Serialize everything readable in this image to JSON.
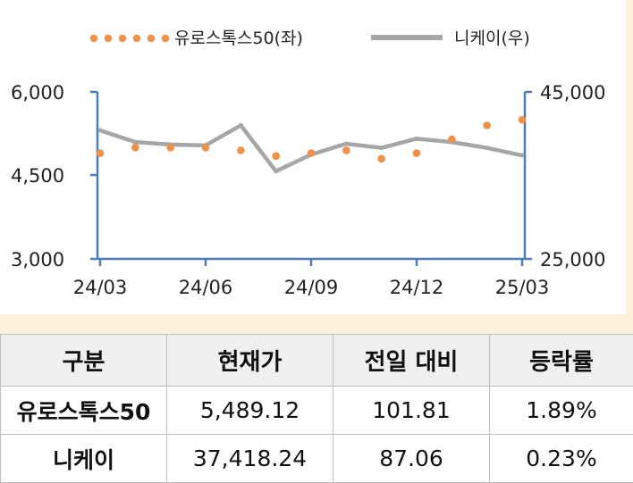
{
  "chart_data": {
    "type": "line",
    "legend_position": "top",
    "x_tick_labels": [
      "24/03",
      "24/06",
      "24/09",
      "24/12",
      "25/03"
    ],
    "x": [
      "24/03",
      "24/04",
      "24/05",
      "24/06",
      "24/07",
      "24/08",
      "24/09",
      "24/10",
      "24/11",
      "24/12",
      "25/01",
      "25/02",
      "25/03"
    ],
    "left_axis": {
      "ylim": [
        3000,
        6000
      ],
      "ticks": [
        "3,000",
        "4,500",
        "6,000"
      ]
    },
    "right_axis": {
      "ylim": [
        25000,
        45000
      ],
      "ticks": [
        "25,000",
        "45,000"
      ]
    },
    "series": [
      {
        "name": "유로스톡스50(좌)",
        "axis": "left",
        "style": "dotted",
        "color": "#f0914a",
        "values": [
          4900,
          5000,
          5000,
          5000,
          4950,
          4850,
          4900,
          4950,
          4800,
          4900,
          5150,
          5400,
          5500
        ]
      },
      {
        "name": "니케이(우)",
        "axis": "right",
        "style": "solid",
        "color": "#a6a6a6",
        "values": [
          40400,
          39000,
          38700,
          38600,
          41000,
          35500,
          37500,
          38800,
          38300,
          39400,
          39000,
          38300,
          37400
        ]
      }
    ]
  },
  "table": {
    "headers": [
      "구분",
      "현재가",
      "전일 대비",
      "등락률"
    ],
    "rows": [
      {
        "name": "유로스톡스50",
        "price": "5,489.12",
        "change": "101.81",
        "rate": "1.89%"
      },
      {
        "name": "니케이",
        "price": "37,418.24",
        "change": "87.06",
        "rate": "0.23%"
      }
    ]
  }
}
